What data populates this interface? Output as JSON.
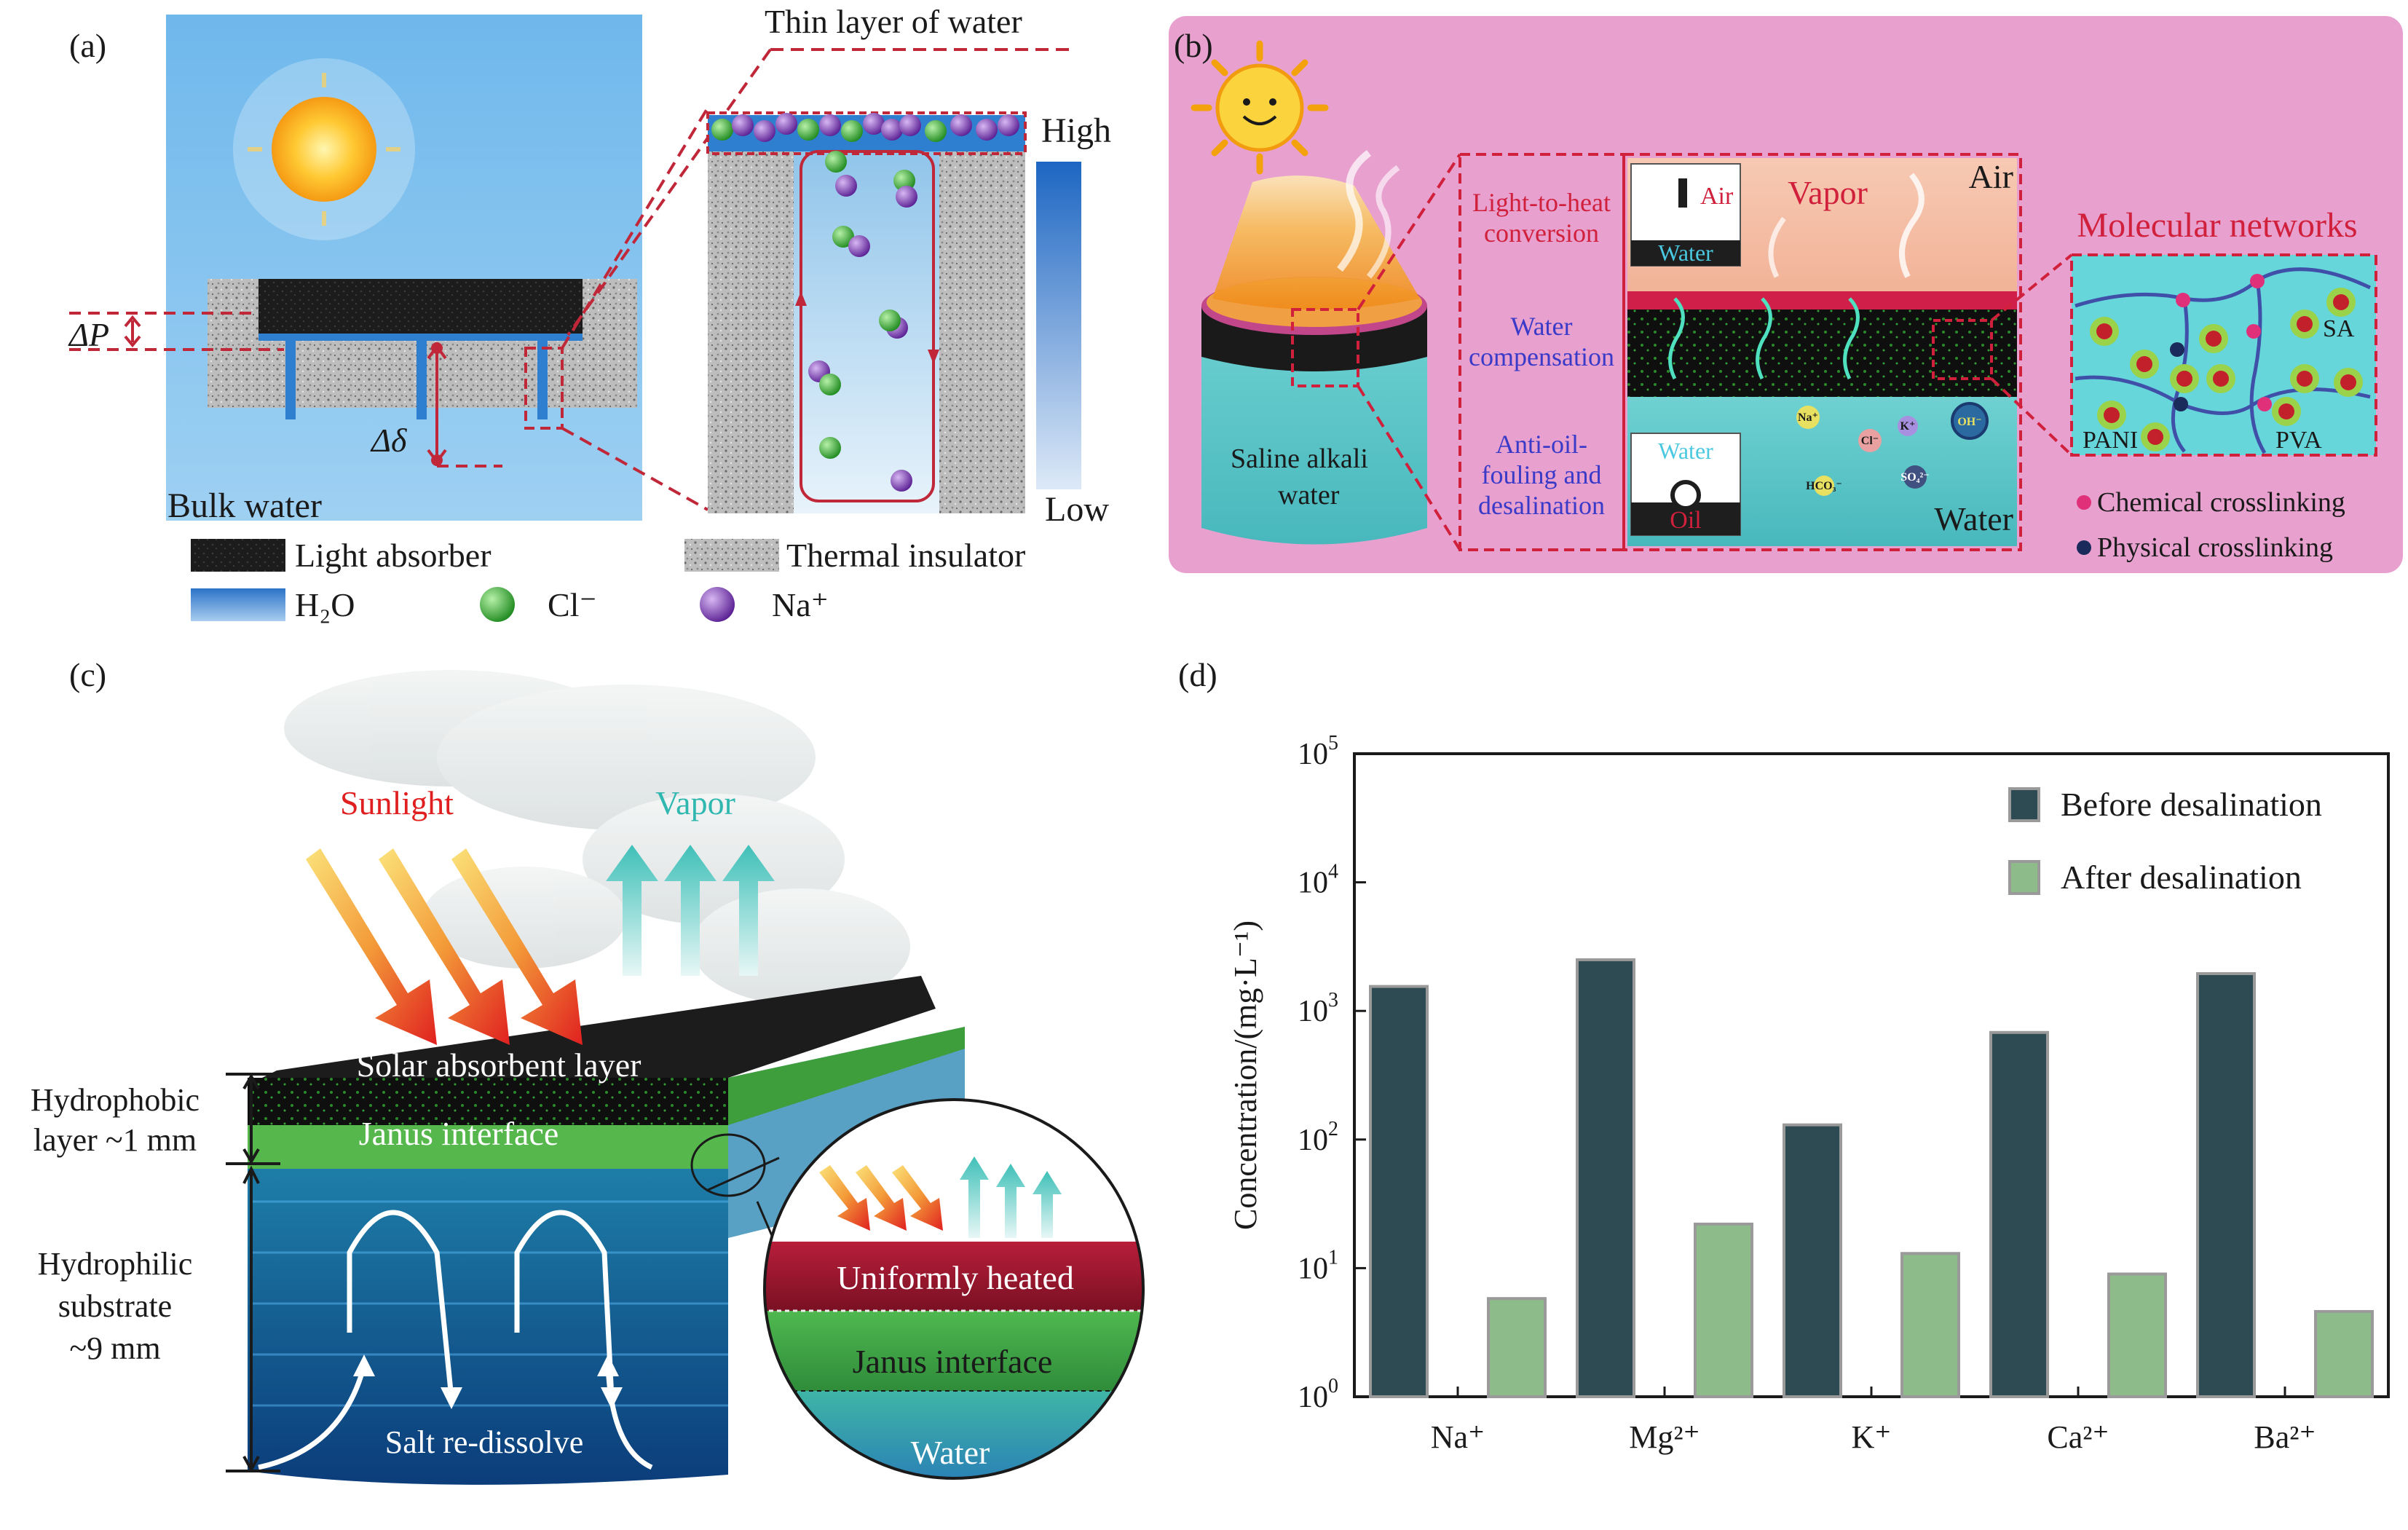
{
  "panel_a": {
    "label": "(a)",
    "thin_layer": "Thin layer of water",
    "high": "High",
    "low": "Low",
    "delta_p": "ΔP",
    "delta_delta": "Δδ",
    "bulk_water": "Bulk water",
    "legend": {
      "light_absorber": "Light absorber",
      "thermal_insulator": "Thermal insulator",
      "h2o": "H₂O",
      "cl": "Cl⁻",
      "na": "Na⁺"
    },
    "colors": {
      "absorber": "#1b1b1b",
      "water": "#2f7fd0",
      "cl": "#3aa33a",
      "na": "#6a2fa0",
      "frame": "#c0283a"
    }
  },
  "panel_b": {
    "label": "(b)",
    "air_top": "Air",
    "vapor": "Vapor",
    "inset_air": "Air",
    "inset_water": "Water",
    "inset_water2": "Water",
    "inset_oil": "Oil",
    "water_bottom": "Water",
    "light_to_heat_1": "Light-to-heat",
    "light_to_heat_2": "conversion",
    "water_comp_1": "Water",
    "water_comp_2": "compensation",
    "anti_oil_1": "Anti-oil-",
    "anti_oil_2": "fouling and",
    "anti_oil_3": "desalination",
    "saline_1": "Saline alkali",
    "saline_2": "water",
    "molecular": "Molecular networks",
    "sa": "SA",
    "pani": "PANI",
    "pva": "PVA",
    "chem": "Chemical crosslinking",
    "phys": "Physical crosslinking",
    "ions": {
      "na": "Na⁺",
      "cl": "Cl⁻",
      "k": "K⁺",
      "oh": "OH⁻",
      "hco3": "HCO₃⁻",
      "so4": "SO₄²⁻"
    },
    "colors": {
      "background": "#e8a0cf",
      "frame": "#d0203c",
      "accent": "#d0203c",
      "blue_text": "#3a3ac8",
      "cyan_text": "#2a9fd0"
    }
  },
  "panel_c": {
    "label": "(c)",
    "sunlight": "Sunlight",
    "vapor": "Vapor",
    "solar_layer": "Solar absorbent layer",
    "janus": "Janus interface",
    "hydrophobic_1": "Hydrophobic",
    "hydrophobic_2": "layer ~1 mm",
    "hydrophilic_1": "Hydrophilic",
    "hydrophilic_2": "substrate",
    "hydrophilic_3": "~9 mm",
    "salt": "Salt re-dissolve",
    "uniform": "Uniformly heated",
    "janus_zoom": "Janus interface",
    "water": "Water",
    "colors": {
      "sunlight": "#e02020",
      "vapor": "#30b8b0"
    }
  },
  "panel_d": {
    "label": "(d)"
  },
  "chart_data": {
    "type": "bar",
    "categories": [
      "Na⁺",
      "Mg²⁺",
      "K⁺",
      "Ca²⁺",
      "Ba²⁺"
    ],
    "series": [
      {
        "name": "Before desalination",
        "values": [
          1550,
          2500,
          130,
          680,
          1950
        ],
        "color": "#2e4a52"
      },
      {
        "name": "After desalination",
        "values": [
          5.8,
          22,
          13,
          9,
          4.6
        ],
        "color": "#8dbb8a"
      }
    ],
    "ylabel": "Concentration/(mg·L⁻¹)",
    "yscale": "log",
    "ylim": [
      1,
      100000
    ],
    "yticks": [
      {
        "base": "10",
        "exp": "0"
      },
      {
        "base": "10",
        "exp": "1"
      },
      {
        "base": "10",
        "exp": "2"
      },
      {
        "base": "10",
        "exp": "3"
      },
      {
        "base": "10",
        "exp": "4"
      },
      {
        "base": "10",
        "exp": "5"
      }
    ],
    "legend_position": "top-right",
    "grid": false
  }
}
